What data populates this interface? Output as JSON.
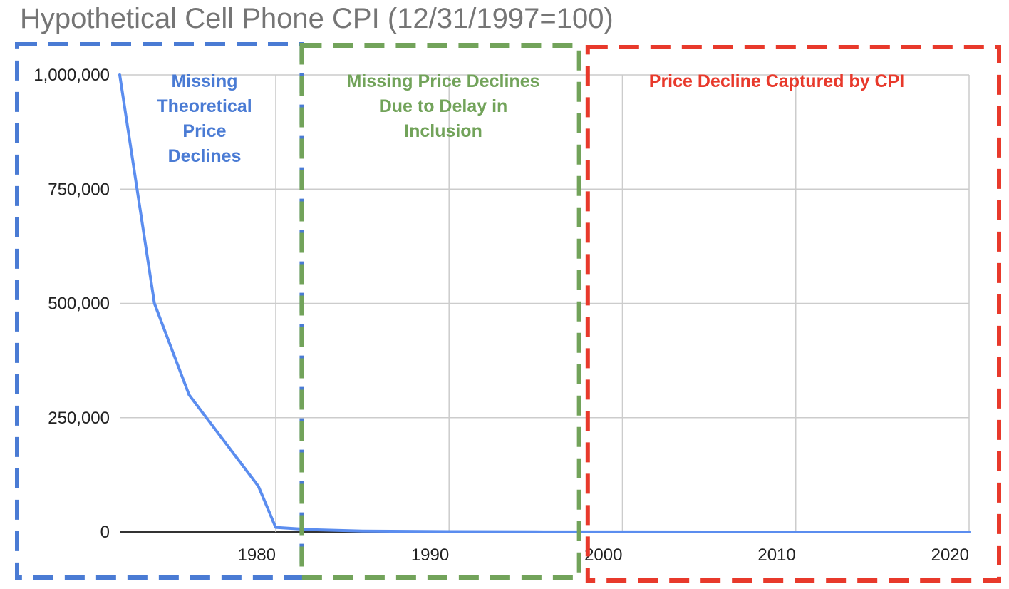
{
  "chart_data": {
    "type": "line",
    "title": "Hypothetical Cell Phone CPI (12/31/1997=100)",
    "xlabel": "",
    "ylabel": "",
    "xlim": [
      1971,
      2020
    ],
    "ylim": [
      0,
      1000000
    ],
    "x_ticks": [
      1980,
      1990,
      2000,
      2010,
      2020
    ],
    "y_ticks": [
      0,
      250000,
      500000,
      750000,
      1000000
    ],
    "y_tick_labels": [
      "0",
      "250,000",
      "500,000",
      "750,000",
      "1,000,000"
    ],
    "grid": true,
    "legend": "none",
    "series": [
      {
        "color": "#5b8def",
        "x": [
          1971,
          1973,
          1975,
          1977,
          1979,
          1980,
          1982,
          1985,
          1990,
          1995,
          1998,
          2000,
          2005,
          2010,
          2015,
          2020
        ],
        "y": [
          1000000,
          500000,
          300000,
          200000,
          100000,
          10000,
          5000,
          2000,
          800,
          300,
          100,
          80,
          60,
          45,
          35,
          25
        ]
      }
    ],
    "annotations": [
      {
        "text_lines": [
          "Missing",
          "Theoretical",
          "Price",
          "Declines"
        ],
        "color": "#4a7bd4",
        "x_range": [
          1971,
          1981.5
        ]
      },
      {
        "text_lines": [
          "Missing Price Declines",
          "Due to Delay in",
          "Inclusion"
        ],
        "color": "#72a35a",
        "x_range": [
          1981.5,
          1997.5
        ]
      },
      {
        "text_lines": [
          "Price Decline Captured by CPI"
        ],
        "color": "#e8392b",
        "x_range": [
          1998,
          2020
        ]
      }
    ]
  }
}
